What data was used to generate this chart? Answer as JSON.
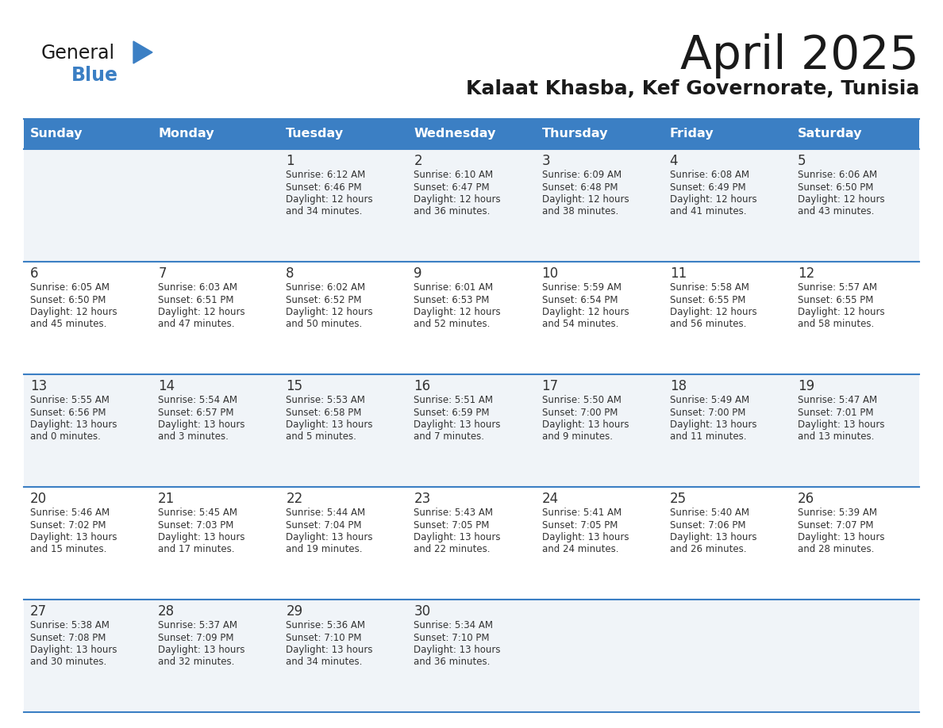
{
  "title": "April 2025",
  "subtitle": "Kalaat Khasba, Kef Governorate, Tunisia",
  "days_of_week": [
    "Sunday",
    "Monday",
    "Tuesday",
    "Wednesday",
    "Thursday",
    "Friday",
    "Saturday"
  ],
  "header_bg": "#3B7FC4",
  "header_text": "#FFFFFF",
  "row_bg_light": "#F0F4F8",
  "row_bg_white": "#FFFFFF",
  "cell_text_color": "#333333",
  "border_color": "#3B7FC4",
  "title_color": "#1a1a1a",
  "subtitle_color": "#1a1a1a",
  "logo_general_color": "#1a1a1a",
  "logo_blue_color": "#3B7FC4",
  "calendar": [
    [
      null,
      null,
      {
        "day": "1",
        "sunrise": "6:12 AM",
        "sunset": "6:46 PM",
        "daylight_h": "12 hours",
        "daylight_m": "34 minutes"
      },
      {
        "day": "2",
        "sunrise": "6:10 AM",
        "sunset": "6:47 PM",
        "daylight_h": "12 hours",
        "daylight_m": "36 minutes"
      },
      {
        "day": "3",
        "sunrise": "6:09 AM",
        "sunset": "6:48 PM",
        "daylight_h": "12 hours",
        "daylight_m": "38 minutes"
      },
      {
        "day": "4",
        "sunrise": "6:08 AM",
        "sunset": "6:49 PM",
        "daylight_h": "12 hours",
        "daylight_m": "41 minutes"
      },
      {
        "day": "5",
        "sunrise": "6:06 AM",
        "sunset": "6:50 PM",
        "daylight_h": "12 hours",
        "daylight_m": "43 minutes"
      }
    ],
    [
      {
        "day": "6",
        "sunrise": "6:05 AM",
        "sunset": "6:50 PM",
        "daylight_h": "12 hours",
        "daylight_m": "45 minutes"
      },
      {
        "day": "7",
        "sunrise": "6:03 AM",
        "sunset": "6:51 PM",
        "daylight_h": "12 hours",
        "daylight_m": "47 minutes"
      },
      {
        "day": "8",
        "sunrise": "6:02 AM",
        "sunset": "6:52 PM",
        "daylight_h": "12 hours",
        "daylight_m": "50 minutes"
      },
      {
        "day": "9",
        "sunrise": "6:01 AM",
        "sunset": "6:53 PM",
        "daylight_h": "12 hours",
        "daylight_m": "52 minutes"
      },
      {
        "day": "10",
        "sunrise": "5:59 AM",
        "sunset": "6:54 PM",
        "daylight_h": "12 hours",
        "daylight_m": "54 minutes"
      },
      {
        "day": "11",
        "sunrise": "5:58 AM",
        "sunset": "6:55 PM",
        "daylight_h": "12 hours",
        "daylight_m": "56 minutes"
      },
      {
        "day": "12",
        "sunrise": "5:57 AM",
        "sunset": "6:55 PM",
        "daylight_h": "12 hours",
        "daylight_m": "58 minutes"
      }
    ],
    [
      {
        "day": "13",
        "sunrise": "5:55 AM",
        "sunset": "6:56 PM",
        "daylight_h": "13 hours",
        "daylight_m": "0 minutes"
      },
      {
        "day": "14",
        "sunrise": "5:54 AM",
        "sunset": "6:57 PM",
        "daylight_h": "13 hours",
        "daylight_m": "3 minutes"
      },
      {
        "day": "15",
        "sunrise": "5:53 AM",
        "sunset": "6:58 PM",
        "daylight_h": "13 hours",
        "daylight_m": "5 minutes"
      },
      {
        "day": "16",
        "sunrise": "5:51 AM",
        "sunset": "6:59 PM",
        "daylight_h": "13 hours",
        "daylight_m": "7 minutes"
      },
      {
        "day": "17",
        "sunrise": "5:50 AM",
        "sunset": "7:00 PM",
        "daylight_h": "13 hours",
        "daylight_m": "9 minutes"
      },
      {
        "day": "18",
        "sunrise": "5:49 AM",
        "sunset": "7:00 PM",
        "daylight_h": "13 hours",
        "daylight_m": "11 minutes"
      },
      {
        "day": "19",
        "sunrise": "5:47 AM",
        "sunset": "7:01 PM",
        "daylight_h": "13 hours",
        "daylight_m": "13 minutes"
      }
    ],
    [
      {
        "day": "20",
        "sunrise": "5:46 AM",
        "sunset": "7:02 PM",
        "daylight_h": "13 hours",
        "daylight_m": "15 minutes"
      },
      {
        "day": "21",
        "sunrise": "5:45 AM",
        "sunset": "7:03 PM",
        "daylight_h": "13 hours",
        "daylight_m": "17 minutes"
      },
      {
        "day": "22",
        "sunrise": "5:44 AM",
        "sunset": "7:04 PM",
        "daylight_h": "13 hours",
        "daylight_m": "19 minutes"
      },
      {
        "day": "23",
        "sunrise": "5:43 AM",
        "sunset": "7:05 PM",
        "daylight_h": "13 hours",
        "daylight_m": "22 minutes"
      },
      {
        "day": "24",
        "sunrise": "5:41 AM",
        "sunset": "7:05 PM",
        "daylight_h": "13 hours",
        "daylight_m": "24 minutes"
      },
      {
        "day": "25",
        "sunrise": "5:40 AM",
        "sunset": "7:06 PM",
        "daylight_h": "13 hours",
        "daylight_m": "26 minutes"
      },
      {
        "day": "26",
        "sunrise": "5:39 AM",
        "sunset": "7:07 PM",
        "daylight_h": "13 hours",
        "daylight_m": "28 minutes"
      }
    ],
    [
      {
        "day": "27",
        "sunrise": "5:38 AM",
        "sunset": "7:08 PM",
        "daylight_h": "13 hours",
        "daylight_m": "30 minutes"
      },
      {
        "day": "28",
        "sunrise": "5:37 AM",
        "sunset": "7:09 PM",
        "daylight_h": "13 hours",
        "daylight_m": "32 minutes"
      },
      {
        "day": "29",
        "sunrise": "5:36 AM",
        "sunset": "7:10 PM",
        "daylight_h": "13 hours",
        "daylight_m": "34 minutes"
      },
      {
        "day": "30",
        "sunrise": "5:34 AM",
        "sunset": "7:10 PM",
        "daylight_h": "13 hours",
        "daylight_m": "36 minutes"
      },
      null,
      null,
      null
    ]
  ]
}
